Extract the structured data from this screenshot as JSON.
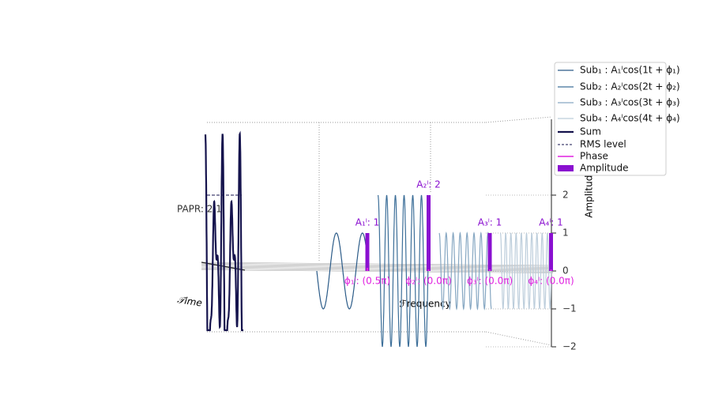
{
  "chart_data": {
    "type": "subcarriers3d",
    "subcarriers": {
      "names": [
        "Sub₁ : A₁ˡcos(1t + ϕ₁)",
        "Sub₂ : A₂ˡcos(2t + ϕ₂)",
        "Sub₃ : A₃ˡcos(3t + ϕ₃)",
        "Sub₄ : A₄ˡcos(4t + ϕ₄)"
      ],
      "colors": [
        "#2b5b88",
        "#3d6f99",
        "#86a7c2",
        "#bccddb"
      ]
    },
    "sum": {
      "name": "Sum",
      "color": "#15134d"
    },
    "rms": {
      "name": "RMS level",
      "color": "#15134d"
    },
    "phase": {
      "name": "Phase",
      "color": "#e021e0",
      "values": [
        0.5,
        0,
        0,
        0
      ],
      "value_labels": [
        "ϕ₁ˡ: (0.5π)",
        "ϕ₂ˡ: (0.0π)",
        "ϕ₃ˡ: (0.0π)",
        "ϕ₄ˡ: (0.0π)"
      ]
    },
    "amplitude": {
      "name": "Amplitude",
      "color": "#8a10d0",
      "values": [
        1,
        2,
        1,
        1
      ],
      "value_labels": [
        "A₁ˡ: 1",
        "A₂ˡ: 2",
        "A₃ˡ: 1",
        "A₄ˡ: 1"
      ]
    },
    "papr": {
      "value": 2.1,
      "label": "PAPR: 2.1"
    },
    "xlabel": "𝒯ime",
    "ylabel": "ℱrequency",
    "zlabel": "Amplitude",
    "zlim": [
      -2,
      4
    ],
    "zticks": [
      {
        "value": -2,
        "label": "−2"
      },
      {
        "value": -1,
        "label": "−1"
      },
      0,
      1,
      2
    ]
  }
}
